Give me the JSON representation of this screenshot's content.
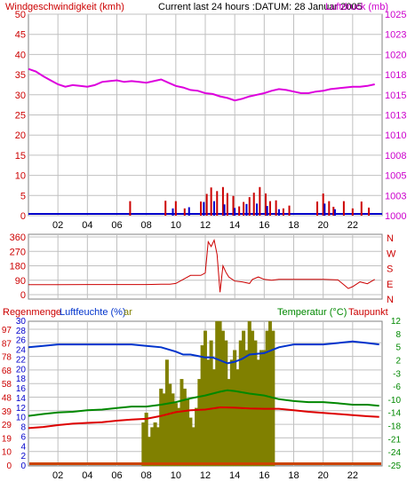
{
  "header": {
    "wind_title": "Windgeschwindigkeit (kmh)",
    "current_title": "Current last 24 hours :DATUM: 28 Januar 2005",
    "pressure_title": "Luftdruck (mb)"
  },
  "bottom_header": {
    "rain_label": "Regenmenge",
    "humidity_label": "Luftfeuchte (%)",
    "extra_label": "ar",
    "temp_label": "Temperatur (°C)",
    "dew_label": "Taupunkt"
  },
  "colors": {
    "wind": "#cc0000",
    "gust": "#cc0000",
    "calm": "#0000cc",
    "pressure": "#dd00dd",
    "direction": "#cc0000",
    "humidity": "#0033cc",
    "temperature": "#008800",
    "dewpoint": "#dd0000",
    "rain": "#808000",
    "rain_base": "#cc4400",
    "grid": "#c0c0c0",
    "left_axis_text": "#cc0000",
    "pressure_axis_text": "#cc00cc",
    "right_bottom_axis_text": "#008800"
  },
  "chart_data": [
    {
      "type": "line",
      "name": "wind-pressure",
      "title": "Current last 24 hours :DATUM: 28 Januar 2005",
      "x_ticks": [
        "02",
        "04",
        "06",
        "08",
        "10",
        "12",
        "14",
        "16",
        "18",
        "20",
        "22"
      ],
      "x_tick_hours": [
        2,
        4,
        6,
        8,
        10,
        12,
        14,
        16,
        18,
        20,
        22
      ],
      "x_range_hours": [
        0,
        24
      ],
      "y_left_label": "Windgeschwindigkeit (kmh)",
      "y_left_range": [
        0,
        50
      ],
      "y_left_ticks": [
        "0",
        "5",
        "10",
        "15",
        "20",
        "25",
        "30",
        "35",
        "40",
        "45",
        "50"
      ],
      "y_right_label": "Luftdruck (mb)",
      "y_right_range": [
        1000,
        1025
      ],
      "y_right_ticks": [
        "1000",
        "1003",
        "1005",
        "1008",
        "1010",
        "1013",
        "1015",
        "1018",
        "1020",
        "1023",
        "1025"
      ],
      "pressure_series": {
        "x": [
          0,
          0.5,
          1,
          1.5,
          2,
          2.5,
          3,
          3.5,
          4,
          4.5,
          5,
          5.5,
          6,
          6.5,
          7,
          7.5,
          8,
          8.5,
          9,
          9.5,
          10,
          10.5,
          11,
          11.5,
          12,
          12.5,
          13,
          13.5,
          14,
          14.5,
          15,
          15.5,
          16,
          16.5,
          17,
          17.5,
          18,
          18.5,
          19,
          19.5,
          20,
          20.5,
          21,
          21.5,
          22,
          22.5,
          23,
          23.5
        ],
        "values": [
          1018.2,
          1017.9,
          1017.3,
          1016.8,
          1016.3,
          1016,
          1016.2,
          1016.1,
          1016,
          1016.2,
          1016.6,
          1016.7,
          1016.8,
          1016.6,
          1016.7,
          1016.6,
          1016.5,
          1016.7,
          1016.9,
          1016.5,
          1016.1,
          1015.9,
          1015.6,
          1015.5,
          1015.2,
          1015.1,
          1014.8,
          1014.6,
          1014.3,
          1014.5,
          1014.8,
          1015,
          1015.2,
          1015.5,
          1015.7,
          1015.6,
          1015.4,
          1015.2,
          1015.2,
          1015.4,
          1015.5,
          1015.7,
          1015.8,
          1015.9,
          1016,
          1016,
          1016.1,
          1016.3
        ]
      },
      "gust_bars": {
        "x": [
          6.9,
          9.3,
          10.0,
          10.6,
          11.7,
          12.1,
          12.4,
          12.8,
          13.2,
          13.5,
          13.9,
          14.3,
          14.6,
          15.0,
          15.3,
          15.7,
          16.1,
          16.4,
          16.8,
          17.3,
          17.7,
          19.6,
          20.0,
          20.4,
          20.7,
          21.4,
          22.0,
          22.6,
          23.1
        ],
        "values": [
          3.6,
          3.7,
          3.6,
          1.8,
          3.5,
          5.4,
          7.0,
          6.1,
          7.1,
          5.6,
          4.9,
          2.3,
          3.4,
          4.6,
          5.7,
          7.1,
          5.5,
          3.6,
          3.8,
          1.8,
          2.5,
          3.5,
          5.5,
          3.6,
          2.2,
          3.6,
          1.8,
          3.5,
          2.0
        ]
      },
      "wind_bars": {
        "x": [
          9.8,
          10.9,
          11.9,
          12.6,
          13.3,
          14.0,
          14.8,
          15.5,
          16.2,
          17.0,
          20.1,
          20.8
        ],
        "values": [
          1.8,
          2.1,
          3.4,
          3.6,
          2.8,
          1.9,
          2.9,
          3.0,
          2.4,
          1.6,
          3.0,
          1.6
        ]
      }
    },
    {
      "type": "line",
      "name": "wind-direction",
      "x_range_hours": [
        0,
        24
      ],
      "y_range": [
        0,
        360
      ],
      "y_ticks": [
        "0",
        "90",
        "180",
        "270",
        "360"
      ],
      "y_tick_values": [
        0,
        90,
        180,
        270,
        360
      ],
      "compass_labels": [
        "N",
        "W",
        "S",
        "E",
        "N"
      ],
      "direction_series": {
        "x": [
          0,
          2,
          4,
          6,
          8,
          9,
          9.6,
          10,
          11,
          11.7,
          12,
          12.2,
          12.4,
          12.6,
          12.8,
          13,
          13.2,
          13.4,
          13.6,
          14,
          14.5,
          15,
          15.2,
          15.6,
          16,
          16.5,
          17,
          18,
          19,
          20,
          21,
          21.5,
          21.7,
          22,
          22.5,
          23,
          23.5
        ],
        "values": [
          62,
          62,
          63,
          63,
          63,
          65,
          65,
          70,
          120,
          120,
          135,
          330,
          300,
          340,
          250,
          15,
          180,
          140,
          110,
          85,
          80,
          70,
          95,
          110,
          95,
          90,
          95,
          95,
          95,
          95,
          92,
          55,
          38,
          50,
          80,
          68,
          95
        ]
      }
    },
    {
      "type": "line",
      "name": "humidity-temperature",
      "x_ticks": [
        "02",
        "04",
        "06",
        "08",
        "10",
        "12",
        "14",
        "16",
        "18",
        "20",
        "22"
      ],
      "x_tick_hours": [
        2,
        4,
        6,
        8,
        10,
        12,
        14,
        16,
        18,
        20,
        22
      ],
      "x_range_hours": [
        0,
        24
      ],
      "y_left_ticks_rain": [
        "0",
        "2",
        "4",
        "6",
        "8",
        "10",
        "12",
        "14",
        "16",
        "18",
        "20",
        "22",
        "24",
        "26",
        "28",
        "30"
      ],
      "y_left_rain_range": [
        0,
        30
      ],
      "y_left_ticks_humidity": [
        "0",
        "10",
        "19",
        "29",
        "39",
        "48",
        "58",
        "68",
        "78",
        "87",
        "97"
      ],
      "y_left_humidity_range": [
        0,
        100
      ],
      "y_right_ticks": [
        "-25",
        "-24",
        "-21",
        "-18",
        "-14",
        "-10",
        "-6",
        "-3",
        "2",
        "5",
        "8",
        "12"
      ],
      "y_right_range": [
        -27,
        12
      ],
      "humidity_series": {
        "x": [
          0,
          1,
          2,
          3,
          4,
          5,
          6,
          7,
          8,
          9,
          10,
          10.5,
          11,
          11.5,
          12,
          12.5,
          13,
          13.5,
          14,
          14.5,
          15,
          16,
          17,
          18,
          19,
          20,
          21,
          22,
          23,
          23.8
        ],
        "values": [
          82,
          83,
          84,
          84,
          84,
          84,
          84,
          84,
          83,
          82,
          79,
          77,
          77,
          76,
          75,
          75,
          73,
          71,
          72,
          74,
          77,
          78,
          82,
          84,
          84,
          84,
          85,
          86,
          85,
          84
        ]
      },
      "temperature_series": {
        "x": [
          0,
          1,
          2,
          3,
          4,
          5,
          6,
          7,
          8,
          9,
          10,
          11,
          12,
          13,
          13.5,
          14,
          15,
          16,
          17,
          18,
          19,
          20,
          21,
          22,
          23,
          23.8
        ],
        "values": [
          -13.5,
          -13,
          -12.6,
          -12.4,
          -12,
          -11.8,
          -11.4,
          -11,
          -11,
          -10.5,
          -9.8,
          -8.8,
          -8,
          -7,
          -6.6,
          -6.8,
          -7.5,
          -8,
          -9,
          -9.5,
          -9.8,
          -9.8,
          -10.1,
          -10.5,
          -10.5,
          -10.8
        ]
      },
      "dewpoint_series": {
        "x": [
          0,
          1,
          2,
          3,
          4,
          5,
          6,
          7,
          8,
          9,
          10,
          11,
          12,
          13,
          14,
          15,
          16,
          17,
          18,
          19,
          20,
          21,
          22,
          23,
          23.8
        ],
        "values": [
          -16.8,
          -16.5,
          -16,
          -15.6,
          -15.4,
          -15.2,
          -14.8,
          -14.5,
          -14.3,
          -13.5,
          -12.5,
          -12,
          -11.8,
          -11.2,
          -11.3,
          -11.5,
          -11.6,
          -11.6,
          -12,
          -12.4,
          -12.7,
          -13,
          -13.3,
          -13.6,
          -13.8
        ]
      },
      "rain_bars": {
        "x": [
          7.8,
          8.0,
          8.2,
          8.4,
          8.6,
          8.8,
          9.0,
          9.2,
          9.4,
          9.6,
          9.8,
          10.0,
          10.2,
          10.4,
          10.6,
          10.8,
          11.0,
          11.2,
          11.4,
          11.6,
          11.8,
          12.0,
          12.2,
          12.4,
          12.6,
          12.8,
          13.0,
          13.2,
          13.4,
          13.6,
          13.8,
          14.0,
          14.2,
          14.4,
          14.6,
          14.8,
          15.0,
          15.2,
          15.4,
          15.6,
          15.8,
          16.0,
          16.2,
          16.4,
          16.6
        ],
        "values": [
          9,
          11,
          6,
          8,
          9,
          8,
          16,
          15,
          22,
          17,
          15,
          13,
          12,
          18,
          16,
          14,
          10,
          8,
          12,
          18,
          25,
          28,
          22,
          26,
          20,
          30,
          30,
          28,
          26,
          18,
          22,
          24,
          20,
          26,
          28,
          24,
          30,
          28,
          26,
          22,
          24,
          24,
          28,
          30,
          28
        ]
      }
    }
  ]
}
